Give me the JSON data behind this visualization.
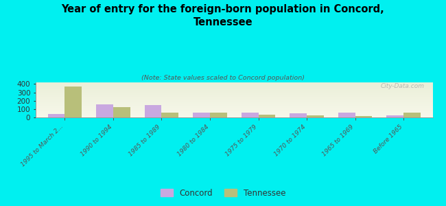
{
  "title": "Year of entry for the foreign-born population in Concord,\nTennessee",
  "subtitle": "(Note: State values scaled to Concord population)",
  "categories": [
    "1995 to March 2...",
    "1990 to 1994",
    "1985 to 1989",
    "1980 to 1984",
    "1975 to 1979",
    "1970 to 1974",
    "1965 to 1969",
    "Before 1965"
  ],
  "concord_values": [
    40,
    155,
    145,
    60,
    60,
    50,
    55,
    25
  ],
  "tennessee_values": [
    370,
    120,
    60,
    55,
    35,
    22,
    18,
    55
  ],
  "concord_color": "#c9a8e0",
  "tennessee_color": "#b8bf7a",
  "background_color": "#00f0f0",
  "ylim": [
    0,
    420
  ],
  "yticks": [
    0,
    100,
    200,
    300,
    400
  ],
  "bar_width": 0.35,
  "watermark": "City-Data.com"
}
